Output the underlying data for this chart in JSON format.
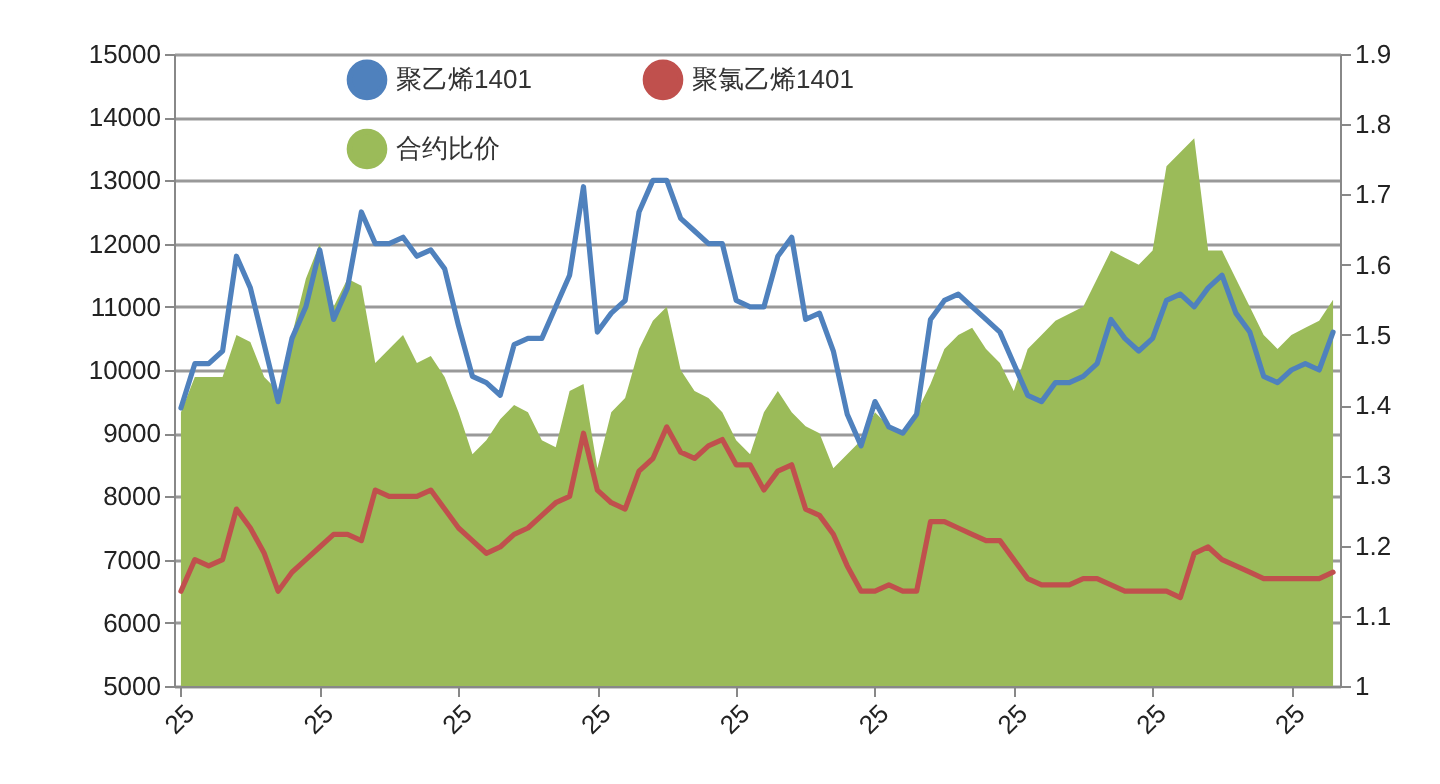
{
  "chart_data": {
    "type": "line",
    "categories": [
      "25",
      null,
      null,
      null,
      null,
      null,
      null,
      null,
      null,
      null,
      "25",
      null,
      null,
      null,
      null,
      null,
      null,
      null,
      null,
      null,
      "25",
      null,
      null,
      null,
      null,
      null,
      null,
      null,
      null,
      null,
      "25",
      null,
      null,
      null,
      null,
      null,
      null,
      null,
      null,
      null,
      "25",
      null,
      null,
      null,
      null,
      null,
      null,
      null,
      null,
      null,
      "25",
      null,
      null,
      null,
      null,
      null,
      null,
      null,
      null,
      null,
      "25",
      null,
      null,
      null,
      null,
      null,
      null,
      null,
      null,
      null,
      "25",
      null,
      null,
      null,
      null,
      null,
      null,
      null,
      null,
      null,
      "25",
      null,
      null,
      null
    ],
    "series": [
      {
        "name": "聚乙烯1401",
        "color": "#4f81bd",
        "values": [
          9400,
          10100,
          10100,
          10300,
          11800,
          11300,
          10400,
          9500,
          10500,
          11000,
          11900,
          10800,
          11300,
          12500,
          12000,
          12000,
          12100,
          11800,
          11900,
          11600,
          10700,
          9900,
          9800,
          9600,
          10400,
          10500,
          10500,
          11000,
          11500,
          12900,
          10600,
          10900,
          11100,
          12500,
          13000,
          13000,
          12400,
          12200,
          12000,
          12000,
          11100,
          11000,
          11000,
          11800,
          12100,
          10800,
          10900,
          10300,
          9300,
          8800,
          9500,
          9100,
          9000,
          9300,
          10800,
          11100,
          11200,
          11000,
          10800,
          10600,
          10100,
          9600,
          9500,
          9800,
          9800,
          9900,
          10100,
          10800,
          10500,
          10300,
          10500,
          11100,
          11200,
          11000,
          11300,
          11500,
          10900,
          10600,
          9900,
          9800,
          10000,
          10100,
          10000,
          10600
        ]
      },
      {
        "name": "聚氯乙烯1401",
        "color": "#c0504d",
        "values": [
          6500,
          7000,
          6900,
          7000,
          7800,
          7500,
          7100,
          6500,
          6800,
          7000,
          7200,
          7400,
          7400,
          7300,
          8100,
          8000,
          8000,
          8000,
          8100,
          7800,
          7500,
          7300,
          7100,
          7200,
          7400,
          7500,
          7700,
          7900,
          8000,
          9000,
          8100,
          7900,
          7800,
          8400,
          8600,
          9100,
          8700,
          8600,
          8800,
          8900,
          8500,
          8500,
          8100,
          8400,
          8500,
          7800,
          7700,
          7400,
          6900,
          6500,
          6500,
          6600,
          6500,
          6500,
          7600,
          7600,
          7500,
          7400,
          7300,
          7300,
          7000,
          6700,
          6600,
          6600,
          6600,
          6700,
          6700,
          6600,
          6500,
          6500,
          6500,
          6500,
          6400,
          7100,
          7200,
          7000,
          6900,
          6800,
          6700,
          6700,
          6700,
          6700,
          6700,
          6800
        ]
      },
      {
        "name": "合约比价",
        "type": "area",
        "axis": "y2",
        "color": "#9bbb59",
        "values": [
          1.39,
          1.44,
          1.44,
          1.44,
          1.5,
          1.49,
          1.44,
          1.42,
          1.5,
          1.58,
          1.63,
          1.54,
          1.58,
          1.57,
          1.46,
          1.48,
          1.5,
          1.46,
          1.47,
          1.44,
          1.39,
          1.33,
          1.35,
          1.38,
          1.4,
          1.39,
          1.35,
          1.34,
          1.42,
          1.43,
          1.31,
          1.39,
          1.41,
          1.48,
          1.52,
          1.54,
          1.45,
          1.42,
          1.41,
          1.39,
          1.35,
          1.33,
          1.39,
          1.42,
          1.39,
          1.37,
          1.36,
          1.31,
          1.33,
          1.35,
          1.39,
          1.37,
          1.36,
          1.39,
          1.43,
          1.48,
          1.5,
          1.51,
          1.48,
          1.46,
          1.42,
          1.48,
          1.5,
          1.52,
          1.53,
          1.54,
          1.58,
          1.62,
          1.61,
          1.6,
          1.62,
          1.74,
          1.76,
          1.78,
          1.62,
          1.62,
          1.58,
          1.54,
          1.5,
          1.48,
          1.5,
          1.51,
          1.52,
          1.55
        ]
      }
    ],
    "ylim": [
      5000,
      15000
    ],
    "yticks": [
      5000,
      6000,
      7000,
      8000,
      9000,
      10000,
      11000,
      12000,
      13000,
      14000,
      15000
    ],
    "y2lim": [
      1,
      1.9
    ],
    "y2ticks": [
      1,
      1.1,
      1.2,
      1.3,
      1.4,
      1.5,
      1.6,
      1.7,
      1.8,
      1.9
    ],
    "grid": "y",
    "legend": "top"
  }
}
